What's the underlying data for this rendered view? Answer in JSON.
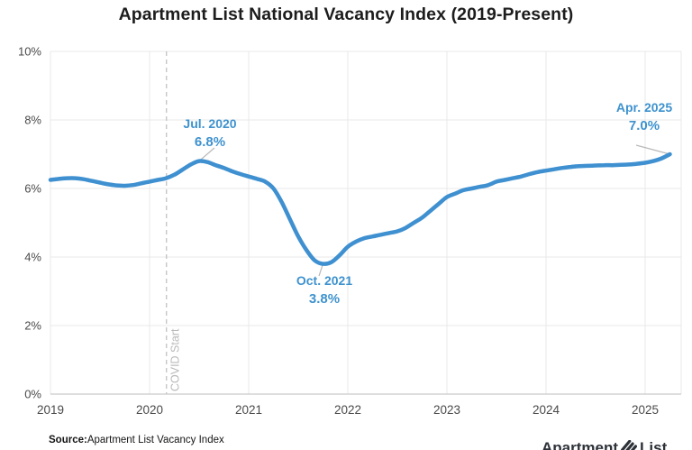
{
  "chart_data": {
    "type": "line",
    "title": "Apartment List National Vacancy Index (2019-Present)",
    "xlabel": "",
    "ylabel": "",
    "ylim": [
      0,
      10
    ],
    "xlim": [
      2019,
      2025.37
    ],
    "grid": true,
    "y_unit": "%",
    "y_tick_labels": [
      "0%",
      "2%",
      "4%",
      "6%",
      "8%",
      "10%"
    ],
    "y_tick_values": [
      0,
      2,
      4,
      6,
      8,
      10
    ],
    "x_tick_labels": [
      "2019",
      "2020",
      "2021",
      "2022",
      "2023",
      "2024",
      "2025"
    ],
    "x_tick_years": [
      2019,
      2020,
      2021,
      2022,
      2023,
      2024,
      2025
    ],
    "line_color": "#3f90d0",
    "annotation_color": "#3e92ce",
    "series": [
      {
        "name": "National Vacancy Index",
        "start_year": 2019,
        "step_months": 1,
        "values": [
          6.25,
          6.28,
          6.3,
          6.3,
          6.27,
          6.22,
          6.17,
          6.12,
          6.09,
          6.08,
          6.1,
          6.15,
          6.2,
          6.25,
          6.3,
          6.4,
          6.55,
          6.7,
          6.8,
          6.77,
          6.68,
          6.6,
          6.5,
          6.42,
          6.35,
          6.28,
          6.2,
          6.0,
          5.6,
          5.1,
          4.6,
          4.2,
          3.9,
          3.8,
          3.85,
          4.05,
          4.3,
          4.45,
          4.55,
          4.6,
          4.65,
          4.7,
          4.75,
          4.85,
          5.0,
          5.15,
          5.35,
          5.55,
          5.75,
          5.85,
          5.95,
          6.0,
          6.05,
          6.1,
          6.2,
          6.25,
          6.3,
          6.35,
          6.42,
          6.48,
          6.52,
          6.56,
          6.6,
          6.63,
          6.65,
          6.66,
          6.67,
          6.68,
          6.68,
          6.69,
          6.7,
          6.72,
          6.75,
          6.8,
          6.88,
          7.0
        ]
      }
    ],
    "annotations": [
      {
        "label": "Jul. 2020",
        "value": "6.8%",
        "year": 2020.5,
        "pct": 6.8
      },
      {
        "label": "Oct. 2021",
        "value": "3.8%",
        "year": 2021.75,
        "pct": 3.8
      },
      {
        "label": "Apr. 2025",
        "value": "7.0%",
        "year": 2025.25,
        "pct": 7.0
      }
    ],
    "covid_marker": {
      "label": "COVID Start",
      "year": 2020.17
    }
  },
  "source": {
    "prefix": "Source:",
    "text": "Apartment List Vacancy Index"
  },
  "logo": {
    "word1": "Apartment",
    "word2": "List"
  }
}
